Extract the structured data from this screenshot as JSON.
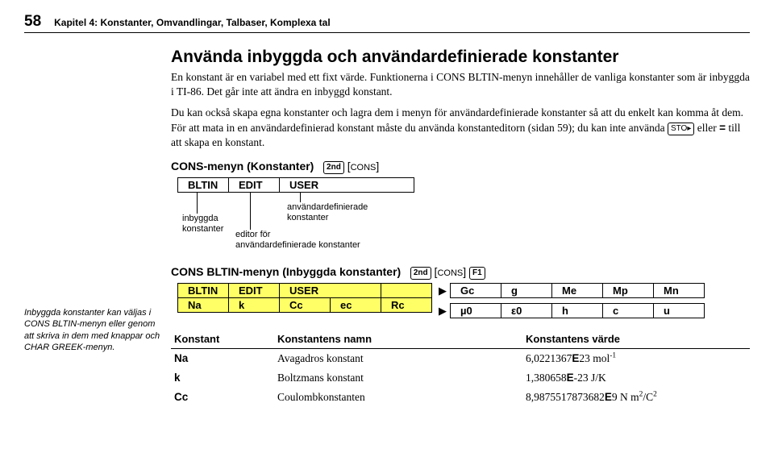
{
  "header": {
    "page_number": "58",
    "chapter_title": "Kapitel 4: Konstanter, Omvandlingar, Talbaser, Komplexa tal"
  },
  "section_title": "Använda inbyggda och användardefinierade konstanter",
  "intro": {
    "p1a": "En konstant är en variabel med ett fixt värde. Funktionerna i CONS BLTIN-menyn innehåller de vanliga konstanter som är inbyggda i TI",
    "p1b": "86. Det går inte att ändra en inbyggd konstant.",
    "p2a": "Du kan också skapa egna konstanter och lagra dem i menyn för användardefinierade konstanter så att du enkelt kan komma åt dem. För att mata in en användardefinierad konstant måste du använda konstanteditorn (sidan 59); du kan inte använda ",
    "p2b": " eller ",
    "p2c": " till att skapa en konstant."
  },
  "keys": {
    "sto": "STO▸",
    "second": "2nd",
    "cons": "CONS",
    "f1": "F1",
    "eq": "="
  },
  "cons_menu": {
    "heading": "CONS-menyn (Konstanter)",
    "row": [
      "BLTIN",
      "EDIT",
      "USER"
    ],
    "ind1_l1": "inbyggda",
    "ind1_l2": "konstanter",
    "ind2_l1": "editor för",
    "ind2_l2": "användardefinierade konstanter",
    "ind3_l1": "användardefinierade",
    "ind3_l2": "konstanter"
  },
  "bltin_menu": {
    "heading": "CONS BLTIN-menyn (Inbyggda konstanter)",
    "row1": [
      "BLTIN",
      "EDIT",
      "USER"
    ],
    "row2": [
      "Na",
      "k",
      "Cc",
      "ec",
      "Rc"
    ],
    "ext1": [
      "Gc",
      "g",
      "Me",
      "Mp",
      "Mn"
    ],
    "ext2": [
      "µ0",
      "ε0",
      "h",
      "c",
      "u"
    ]
  },
  "sidebar_note": "Inbyggda konstanter kan väljas i CONS BLTIN-menyn eller genom att skriva in dem med knappar och CHAR GREEK-menyn.",
  "const_table": {
    "headers": [
      "Konstant",
      "Konstantens namn",
      "Konstantens värde"
    ],
    "rows": [
      {
        "sym": "Na",
        "name": "Avagadros konstant",
        "val_pre": "6,0221367",
        "val_exp": "23",
        "val_unit_html": " mol<sup>-1</sup>"
      },
      {
        "sym": "k",
        "name": "Boltzmans konstant",
        "val_pre": "1,380658",
        "val_minus": true,
        "val_exp": "23",
        "val_unit_html": " J/K"
      },
      {
        "sym": "Cc",
        "name": "Coulombkonstanten",
        "val_pre": "8,9875517873682",
        "val_exp": "9",
        "val_unit_html": " N m<sup>2</sup>/C<sup>2</sup>"
      }
    ]
  }
}
